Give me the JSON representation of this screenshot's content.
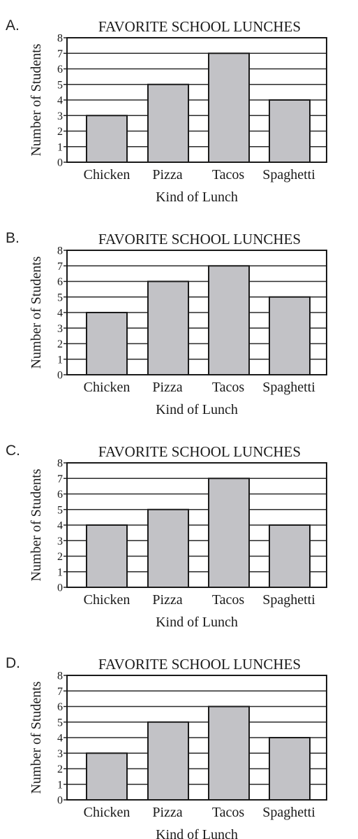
{
  "chart_data": [
    {
      "option": "A.",
      "type": "bar",
      "title": "FAVORITE SCHOOL LUNCHES",
      "xlabel": "Kind of Lunch",
      "ylabel": "Number of Students",
      "categories": [
        "Chicken",
        "Pizza",
        "Tacos",
        "Spaghetti"
      ],
      "values": [
        3,
        5,
        7,
        4
      ],
      "yticks": [
        "0",
        "1",
        "2",
        "3",
        "4",
        "5",
        "6",
        "7",
        "8"
      ],
      "ylim": [
        0,
        8
      ],
      "grid": true,
      "bar_color": "#c2c2c6"
    },
    {
      "option": "B.",
      "type": "bar",
      "title": "FAVORITE SCHOOL LUNCHES",
      "xlabel": "Kind of Lunch",
      "ylabel": "Number of Students",
      "categories": [
        "Chicken",
        "Pizza",
        "Tacos",
        "Spaghetti"
      ],
      "values": [
        4,
        6,
        7,
        5
      ],
      "yticks": [
        "0",
        "1",
        "2",
        "3",
        "4",
        "5",
        "6",
        "7",
        "8"
      ],
      "ylim": [
        0,
        8
      ],
      "grid": true,
      "bar_color": "#c2c2c6"
    },
    {
      "option": "C.",
      "type": "bar",
      "title": "FAVORITE SCHOOL LUNCHES",
      "xlabel": "Kind of Lunch",
      "ylabel": "Number of Students",
      "categories": [
        "Chicken",
        "Pizza",
        "Tacos",
        "Spaghetti"
      ],
      "values": [
        4,
        5,
        7,
        4
      ],
      "yticks": [
        "0",
        "1",
        "2",
        "3",
        "4",
        "5",
        "6",
        "7",
        "8"
      ],
      "ylim": [
        0,
        8
      ],
      "grid": true,
      "bar_color": "#c2c2c6"
    },
    {
      "option": "D.",
      "type": "bar",
      "title": "FAVORITE SCHOOL LUNCHES",
      "xlabel": "Kind of Lunch",
      "ylabel": "Number of Students",
      "categories": [
        "Chicken",
        "Pizza",
        "Tacos",
        "Spaghetti"
      ],
      "values": [
        3,
        5,
        6,
        4
      ],
      "yticks": [
        "0",
        "1",
        "2",
        "3",
        "4",
        "5",
        "6",
        "7",
        "8"
      ],
      "ylim": [
        0,
        8
      ],
      "grid": true,
      "bar_color": "#c2c2c6"
    }
  ]
}
